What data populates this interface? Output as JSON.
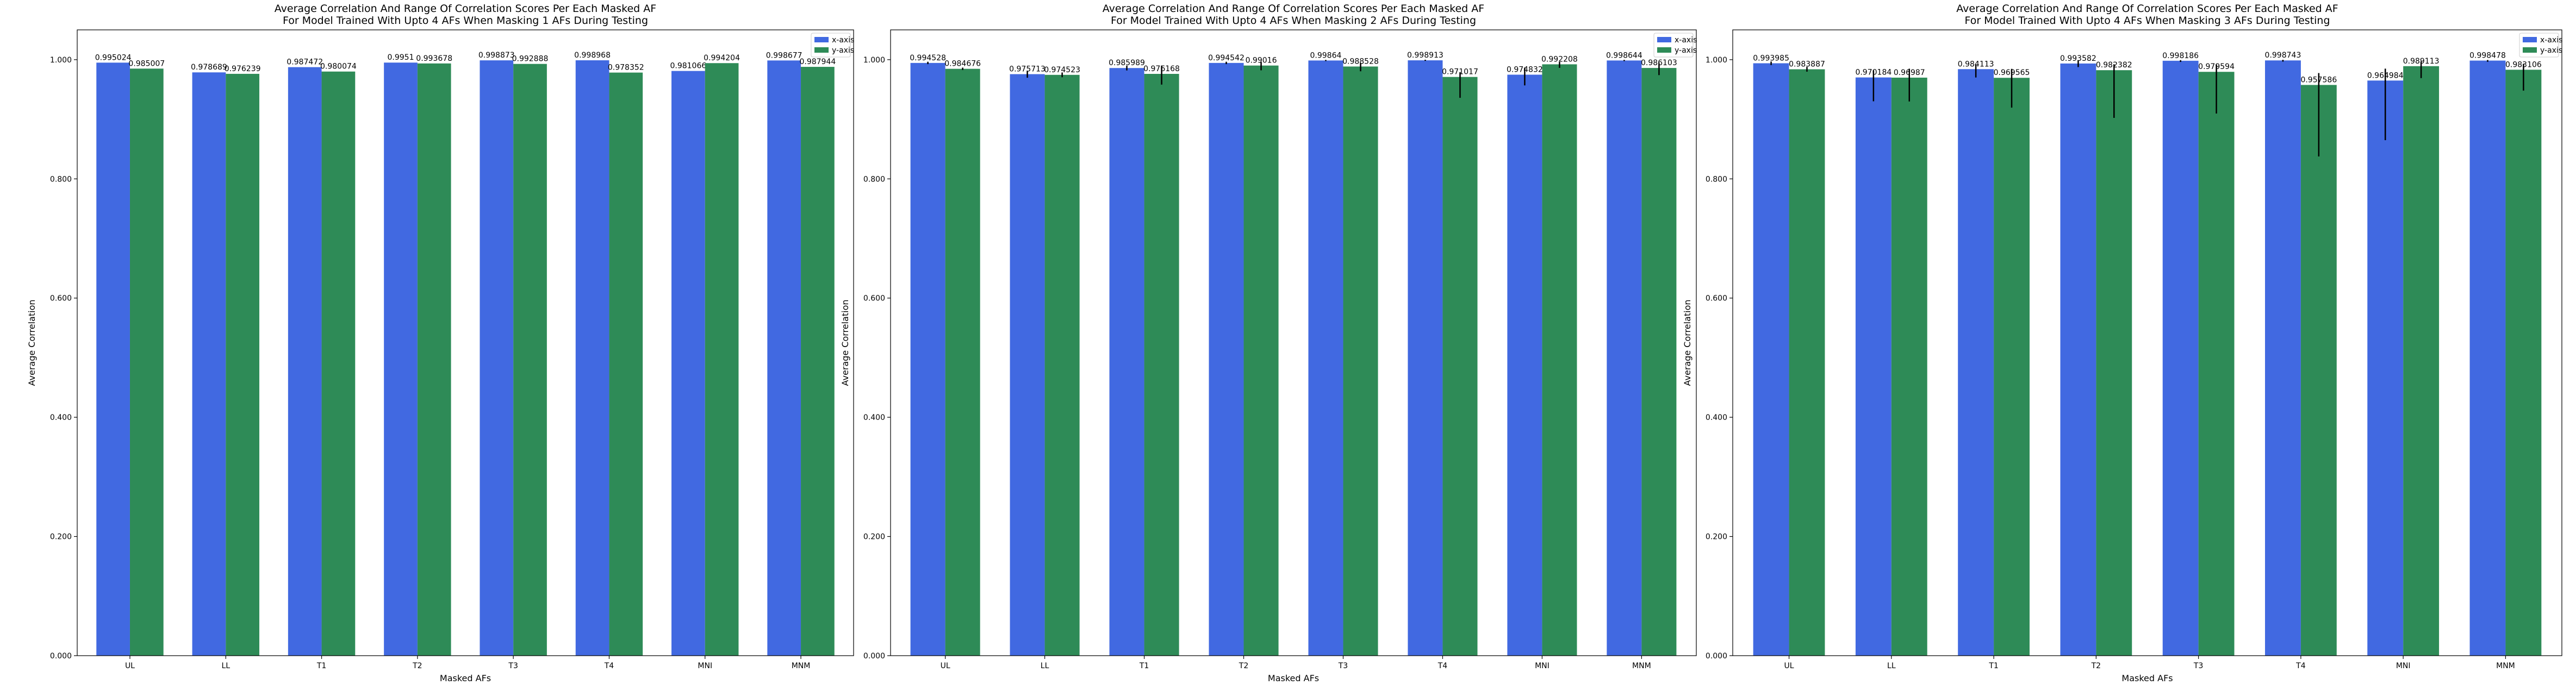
{
  "colors": {
    "x_series": "#4169E1",
    "y_series": "#2E8B57",
    "error_bar": "#000000",
    "axes": "#000000"
  },
  "chart_data": [
    {
      "type": "bar",
      "title": "Average Correlation And Range Of Correlation Scores Per Each Masked AF",
      "subtitle": "For Model Trained With Upto 4 AFs When Masking 1 AFs During Testing",
      "xlabel": "Masked AFs",
      "ylabel": "Average Correlation",
      "ylim": [
        0,
        1.05
      ],
      "yticks": [
        "0.000",
        "0.200",
        "0.400",
        "0.600",
        "0.800",
        "1.000"
      ],
      "categories": [
        "UL",
        "LL",
        "T1",
        "T2",
        "T3",
        "T4",
        "MNI",
        "MNM"
      ],
      "legend": {
        "placement": "top-right",
        "entries": [
          "x-axis",
          "y-axis"
        ]
      },
      "series": [
        {
          "name": "x-axis",
          "values": [
            0.995024,
            0.978689,
            0.987472,
            0.9951,
            0.998873,
            0.998968,
            0.981066,
            0.998677
          ],
          "labels": [
            "0.995024",
            "0.978689",
            "0.987472",
            "0.9951",
            "0.998873",
            "0.998968",
            "0.981066",
            "0.998677"
          ],
          "err_low": [
            0,
            0,
            0,
            0,
            0,
            0,
            0,
            0
          ],
          "err_high": [
            0,
            0,
            0,
            0,
            0,
            0,
            0,
            0
          ]
        },
        {
          "name": "y-axis",
          "values": [
            0.985007,
            0.976239,
            0.980074,
            0.993678,
            0.992888,
            0.978352,
            0.994204,
            0.987944
          ],
          "labels": [
            "0.985007",
            "0.976239",
            "0.980074",
            "0.993678",
            "0.992888",
            "0.978352",
            "0.994204",
            "0.987944"
          ],
          "err_low": [
            0,
            0,
            0,
            0,
            0,
            0,
            0,
            0
          ],
          "err_high": [
            0,
            0,
            0,
            0,
            0,
            0,
            0,
            0
          ]
        }
      ]
    },
    {
      "type": "bar",
      "title": "Average Correlation And Range Of Correlation Scores Per Each Masked AF",
      "subtitle": "For Model Trained With Upto 4 AFs When Masking 2 AFs During Testing",
      "xlabel": "Masked AFs",
      "ylabel": "Average Correlation",
      "ylim": [
        0,
        1.05
      ],
      "yticks": [
        "0.000",
        "0.200",
        "0.400",
        "0.600",
        "0.800",
        "1.000"
      ],
      "categories": [
        "UL",
        "LL",
        "T1",
        "T2",
        "T3",
        "T4",
        "MNI",
        "MNM"
      ],
      "legend": {
        "placement": "top-right",
        "entries": [
          "x-axis",
          "y-axis"
        ]
      },
      "series": [
        {
          "name": "x-axis",
          "values": [
            0.994528,
            0.975713,
            0.985989,
            0.994542,
            0.99864,
            0.998913,
            0.974832,
            0.998644
          ],
          "labels": [
            "0.994528",
            "0.975713",
            "0.985989",
            "0.994542",
            "0.99864",
            "0.998913",
            "0.974832",
            "0.998644"
          ],
          "err_low": [
            0.002,
            0.006,
            0.004,
            0.002,
            0.001,
            0.001,
            0.018,
            0.001
          ],
          "err_high": [
            0.002,
            0.005,
            0.004,
            0.002,
            0.001,
            0.001,
            0.012,
            0.001
          ]
        },
        {
          "name": "y-axis",
          "values": [
            0.984676,
            0.974523,
            0.976168,
            0.99016,
            0.988528,
            0.971017,
            0.992208,
            0.986103
          ],
          "labels": [
            "0.984676",
            "0.974523",
            "0.976168",
            "0.99016",
            "0.988528",
            "0.971017",
            "0.992208",
            "0.986103"
          ],
          "err_low": [
            0.002,
            0.004,
            0.018,
            0.008,
            0.008,
            0.035,
            0.006,
            0.012
          ],
          "err_high": [
            0.002,
            0.004,
            0.014,
            0.006,
            0.006,
            0.008,
            0.004,
            0.008
          ]
        }
      ]
    },
    {
      "type": "bar",
      "title": "Average Correlation And Range Of Correlation Scores Per Each Masked AF",
      "subtitle": "For Model Trained With Upto 4 AFs When Masking 3 AFs During Testing",
      "xlabel": "Masked AFs",
      "ylabel": "Average Correlation",
      "ylim": [
        0,
        1.05
      ],
      "yticks": [
        "0.000",
        "0.200",
        "0.400",
        "0.600",
        "0.800",
        "1.000"
      ],
      "categories": [
        "UL",
        "LL",
        "T1",
        "T2",
        "T3",
        "T4",
        "MNI",
        "MNM"
      ],
      "legend": {
        "placement": "top-right",
        "entries": [
          "x-axis",
          "y-axis"
        ]
      },
      "series": [
        {
          "name": "x-axis",
          "values": [
            0.993985,
            0.970184,
            0.984113,
            0.993582,
            0.998186,
            0.998743,
            0.964984,
            0.998478
          ],
          "labels": [
            "0.993985",
            "0.970184",
            "0.984113",
            "0.993582",
            "0.998186",
            "0.998743",
            "0.964984",
            "0.998478"
          ],
          "err_low": [
            0.003,
            0.04,
            0.014,
            0.006,
            0.002,
            0.002,
            0.1,
            0.002
          ],
          "err_high": [
            0.003,
            0.012,
            0.008,
            0.005,
            0.001,
            0.001,
            0.02,
            0.001
          ]
        },
        {
          "name": "y-axis",
          "values": [
            0.983887,
            0.96987,
            0.969565,
            0.982382,
            0.979594,
            0.957586,
            0.989113,
            0.983106
          ],
          "labels": [
            "0.983887",
            "0.96987",
            "0.969565",
            "0.982382",
            "0.979594",
            "0.957586",
            "0.989113",
            "0.983106"
          ],
          "err_low": [
            0.004,
            0.04,
            0.05,
            0.08,
            0.07,
            0.12,
            0.02,
            0.035
          ],
          "err_high": [
            0.004,
            0.015,
            0.015,
            0.01,
            0.012,
            0.02,
            0.008,
            0.01
          ]
        }
      ]
    }
  ]
}
